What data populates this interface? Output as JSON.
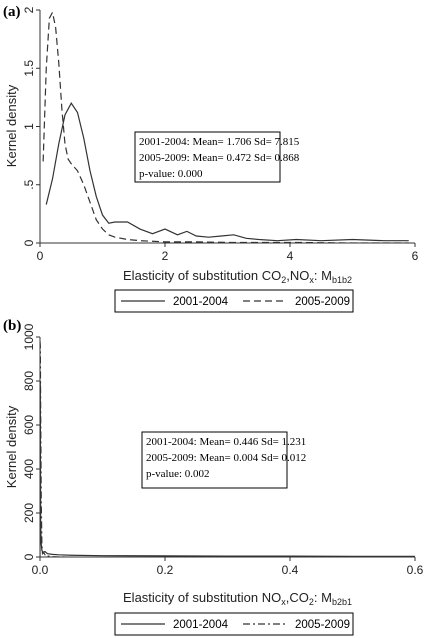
{
  "chart_data": [
    {
      "type": "line",
      "panel_label": "(a)",
      "ylabel": "Kernel density",
      "xlabel": {
        "main": "Elasticity of substitution CO",
        "sub1": "2",
        "mid": ",NO",
        "sub2": "x",
        "tail": ": M",
        "sub3": "b1b2"
      },
      "xlim": [
        0,
        6
      ],
      "ylim": [
        0,
        2
      ],
      "xticks": [
        0,
        2,
        4,
        6
      ],
      "yticks": [
        0,
        0.5,
        1,
        1.5,
        2
      ],
      "ytick_labels": [
        "0",
        ".5",
        "1",
        "1.5",
        "2"
      ],
      "annotation": [
        "2001-2004: Mean= 1.706 Sd= 7.815",
        "2005-2009: Mean= 0.472 Sd= 0.868",
        "p-value: 0.000"
      ],
      "legend": [
        "2001-2004",
        "2005-2009"
      ],
      "series": [
        {
          "name": "2001-2004",
          "style": "solid",
          "x": [
            0.1,
            0.2,
            0.3,
            0.4,
            0.5,
            0.6,
            0.7,
            0.8,
            0.9,
            1.0,
            1.1,
            1.2,
            1.4,
            1.6,
            1.8,
            2.0,
            2.2,
            2.35,
            2.5,
            2.7,
            2.9,
            3.1,
            3.3,
            3.5,
            3.8,
            4.1,
            4.5,
            5.0,
            5.5,
            5.9
          ],
          "values": [
            0.33,
            0.55,
            0.85,
            1.1,
            1.2,
            1.12,
            0.9,
            0.62,
            0.4,
            0.24,
            0.17,
            0.18,
            0.18,
            0.12,
            0.08,
            0.12,
            0.07,
            0.1,
            0.06,
            0.05,
            0.06,
            0.07,
            0.04,
            0.03,
            0.02,
            0.03,
            0.02,
            0.03,
            0.02,
            0.02
          ]
        },
        {
          "name": "2005-2009",
          "style": "dash",
          "x": [
            0.05,
            0.1,
            0.15,
            0.2,
            0.25,
            0.3,
            0.35,
            0.4,
            0.45,
            0.5,
            0.6,
            0.7,
            0.8,
            0.9,
            1.0,
            1.1,
            1.2,
            1.4,
            1.6,
            1.8,
            2.0,
            2.5,
            3.0,
            4.0,
            5.0,
            5.9
          ],
          "values": [
            0.7,
            1.5,
            1.93,
            1.98,
            1.85,
            1.55,
            1.15,
            0.85,
            0.72,
            0.68,
            0.62,
            0.5,
            0.35,
            0.2,
            0.12,
            0.07,
            0.05,
            0.03,
            0.02,
            0.015,
            0.01,
            0.01,
            0.005,
            0.005,
            0.0,
            0.0
          ]
        }
      ]
    },
    {
      "type": "line",
      "panel_label": "(b)",
      "ylabel": "Kernel density",
      "xlabel": {
        "main": "Elasticity of substitution NO",
        "sub1": "x",
        "mid": ",CO",
        "sub2": "2",
        "tail": ": M",
        "sub3": "b2b1"
      },
      "xlim": [
        0,
        0.6
      ],
      "ylim": [
        0,
        1000
      ],
      "xticks": [
        0,
        0.2,
        0.4,
        0.6
      ],
      "xtick_labels": [
        "0.0",
        "0.2",
        "0.4",
        "0.6"
      ],
      "yticks": [
        0,
        200,
        400,
        600,
        800,
        1000
      ],
      "annotation": [
        "2001-2004: Mean= 0.446 Sd= 1.231",
        "2005-2009: Mean= 0.004 Sd= 0.012",
        "p-value: 0.002"
      ],
      "legend": [
        "2001-2004",
        "2005-2009"
      ],
      "series": [
        {
          "name": "2001-2004",
          "style": "solid",
          "x": [
            0.0,
            0.0005,
            0.001,
            0.002,
            0.003,
            0.005,
            0.008,
            0.012,
            0.02,
            0.03,
            0.05,
            0.1,
            0.2,
            0.3,
            0.4,
            0.5,
            0.61
          ],
          "values": [
            0,
            800,
            150,
            60,
            30,
            22,
            25,
            15,
            12,
            10,
            8,
            6,
            5,
            4,
            4,
            3,
            3
          ]
        },
        {
          "name": "2005-2009",
          "style": "dashdot",
          "x": [
            0.0,
            0.0005,
            0.001,
            0.002,
            0.003,
            0.004,
            0.006,
            0.008,
            0.01,
            0.012,
            0.015,
            0.02,
            0.03,
            0.04
          ],
          "values": [
            980,
            960,
            700,
            250,
            60,
            15,
            20,
            10,
            12,
            5,
            3,
            1,
            0,
            0
          ]
        }
      ]
    }
  ]
}
